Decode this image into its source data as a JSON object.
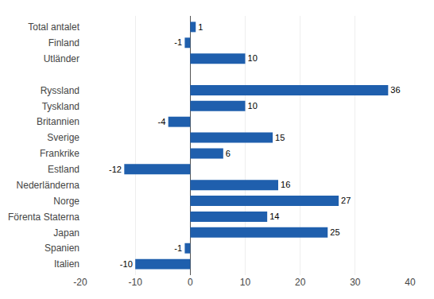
{
  "chart_data": {
    "type": "bar",
    "orientation": "horizontal",
    "categories": [
      "Italien",
      "Spanien",
      "Japan",
      "Förenta Staterna",
      "Norge",
      "Nederländerna",
      "Estland",
      "Frankrike",
      "Sverige",
      "Britannien",
      "Tyskland",
      "Ryssland",
      null,
      "Utländer",
      "Finland",
      "Total antalet"
    ],
    "values": [
      -10,
      -1,
      25,
      14,
      27,
      16,
      -12,
      6,
      15,
      -4,
      10,
      36,
      null,
      10,
      -1,
      1
    ],
    "color": "#1F5FAD",
    "xlim": [
      -20,
      40
    ],
    "xticks": [
      -20,
      -10,
      0,
      10,
      20,
      30,
      40
    ],
    "grid": true,
    "data_labels": true
  }
}
